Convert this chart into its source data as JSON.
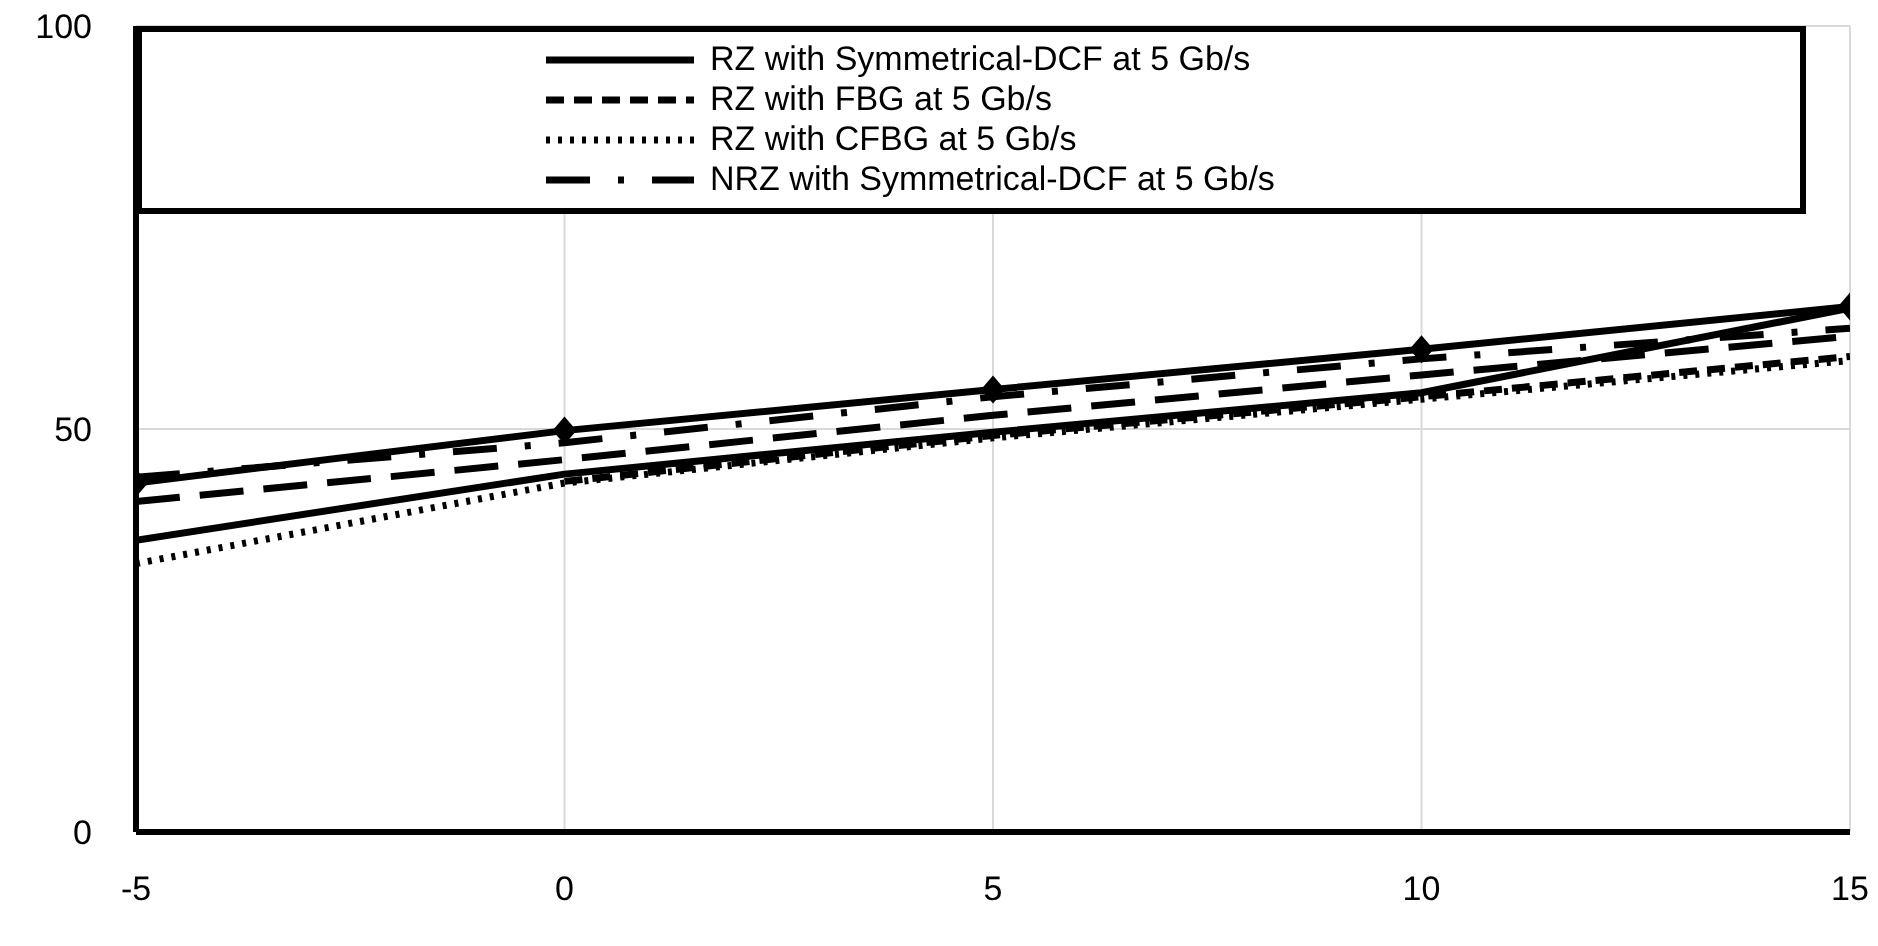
{
  "chart_data": {
    "type": "line",
    "x": [
      -5,
      0,
      5,
      10,
      15
    ],
    "xlim": [
      -5,
      15
    ],
    "xticks": [
      -5,
      0,
      5,
      10,
      15
    ],
    "ylim": [
      0,
      100
    ],
    "yticks": [
      0,
      50,
      100
    ],
    "grid": true,
    "legend": "top",
    "series": [
      {
        "name": "RZ with Symmetrical-DCF at 5 Gb/s",
        "color": "#000000",
        "line_style": "solid",
        "marker": "diamond",
        "values": [
          43.3,
          49.8,
          54.9,
          59.9,
          65.2
        ]
      },
      {
        "name": "RZ with FBG at 5 Gb/s",
        "color": "#000000",
        "line_style": "dashed",
        "marker": "none",
        "values": [
          null,
          43.5,
          49.2,
          54,
          59
        ]
      },
      {
        "name": "RZ with CFBG at 5 Gb/s",
        "color": "#000000",
        "line_style": "dotted",
        "marker": "none",
        "values": [
          33.3,
          43.3,
          48.9,
          53.7,
          58.5
        ]
      },
      {
        "name": "NRZ with Symmetrical-DCF at 5 Gb/s",
        "color": "#000000",
        "line_style": "dashdot",
        "marker": "none",
        "values": [
          44,
          48.3,
          54,
          58.7,
          62.5
        ]
      },
      {
        "color": "#000000",
        "line_style": "solid",
        "marker": "none",
        "values": [
          36.2,
          44.4,
          49.6,
          54.5,
          65
        ]
      },
      {
        "color": "#000000",
        "line_style": "longdash",
        "marker": "none",
        "values": [
          41,
          46.2,
          51.7,
          56.7,
          61.5
        ]
      }
    ]
  }
}
